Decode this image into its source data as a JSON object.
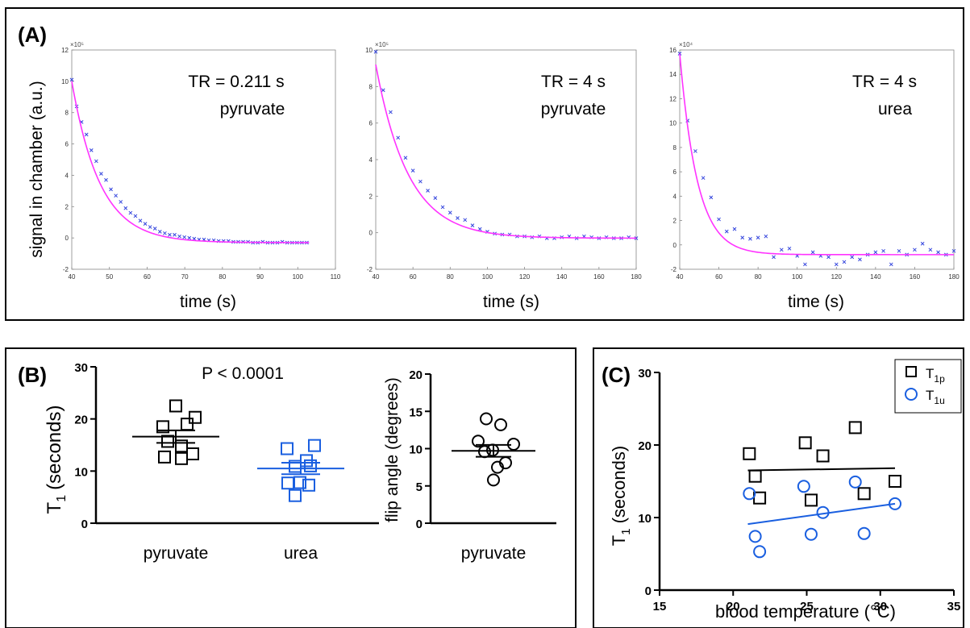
{
  "panel_labels": {
    "a": "(A)",
    "b": "(B)",
    "c": "(C)"
  },
  "colors": {
    "fit": "#ff33ff",
    "marker_a": "#3344dd",
    "pyruvate": "#000000",
    "urea": "#1a5fe0"
  },
  "panel_a": {
    "ylabel": "signal in chamber (a.u.)",
    "xlabel": "time (s)",
    "plots": [
      {
        "annotation": [
          "TR = 0.211 s",
          "pyruvate"
        ],
        "exponent": "×10⁵"
      },
      {
        "annotation": [
          "TR = 4 s",
          "pyruvate"
        ],
        "exponent": "×10⁵"
      },
      {
        "annotation": [
          "TR = 4 s",
          "urea"
        ],
        "exponent": "×10⁴"
      }
    ]
  },
  "panel_b": {
    "ylabel_left": "T",
    "ylabel_left_sub": "1",
    "ylabel_left_unit": "(seconds)",
    "pvalue": "P < 0.0001",
    "ylabel_right": "flip angle (degrees)",
    "cat_pyruvate": "pyruvate",
    "cat_urea": "urea",
    "cat_right": "pyruvate"
  },
  "panel_c": {
    "ylabel": "T",
    "ylabel_sub": "1",
    "ylabel_unit": "(seconds)",
    "xlabel": "blood temperature (°C)",
    "legend": [
      {
        "main": "T",
        "sub": "1p"
      },
      {
        "main": "T",
        "sub": "1u"
      }
    ]
  },
  "chart_data": [
    {
      "type": "scatter",
      "title": "TR = 0.211 s pyruvate",
      "xlabel": "time (s)",
      "ylabel": "signal in chamber (a.u.)",
      "xlim": [
        40,
        110
      ],
      "ylim": [
        -2,
        12
      ],
      "y_scale_factor": "×10⁵",
      "xticks": [
        40,
        50,
        60,
        70,
        80,
        90,
        100,
        110
      ],
      "yticks": [
        -2,
        0,
        2,
        4,
        6,
        8,
        10,
        12
      ],
      "fit": {
        "model": "A*exp(-(t-40)/tau)+c",
        "A": 10.3,
        "tau": 7.5,
        "c": -0.3
      },
      "x": [
        40,
        41.3,
        42.6,
        43.9,
        45.2,
        46.5,
        47.8,
        49.1,
        50.4,
        51.7,
        53,
        54.3,
        55.6,
        56.9,
        58.2,
        59.5,
        60.8,
        62.1,
        63.4,
        64.7,
        66,
        67.3,
        68.6,
        69.9,
        71.2,
        72.5,
        73.8,
        75.1,
        76.4,
        77.7,
        79,
        80.3,
        81.6,
        82.9,
        84.2,
        85.5,
        86.8,
        88.1,
        89.4,
        90.7,
        92,
        93.3,
        94.6,
        95.9,
        97.2,
        98.5,
        99.8,
        101.1,
        102.4
      ],
      "y": [
        10.1,
        8.4,
        7.4,
        6.6,
        5.6,
        4.9,
        4.1,
        3.7,
        3.1,
        2.7,
        2.3,
        1.9,
        1.6,
        1.4,
        1.1,
        0.9,
        0.7,
        0.6,
        0.4,
        0.3,
        0.2,
        0.2,
        0.1,
        0.05,
        0.0,
        -0.05,
        -0.1,
        -0.1,
        -0.15,
        -0.15,
        -0.2,
        -0.2,
        -0.2,
        -0.25,
        -0.25,
        -0.25,
        -0.25,
        -0.3,
        -0.3,
        -0.25,
        -0.3,
        -0.3,
        -0.3,
        -0.25,
        -0.3,
        -0.3,
        -0.3,
        -0.3,
        -0.3
      ]
    },
    {
      "type": "scatter",
      "title": "TR = 4 s pyruvate",
      "xlabel": "time (s)",
      "xlim": [
        40,
        180
      ],
      "ylim": [
        -2,
        10
      ],
      "y_scale_factor": "×10⁵",
      "xticks": [
        40,
        60,
        80,
        100,
        120,
        140,
        160,
        180
      ],
      "yticks": [
        -2,
        0,
        2,
        4,
        6,
        8,
        10
      ],
      "fit": {
        "model": "A*exp(-(t-40)/tau)+c",
        "A": 9.5,
        "tau": 17.5,
        "c": -0.3
      },
      "x": [
        40,
        44,
        48,
        52,
        56,
        60,
        64,
        68,
        72,
        76,
        80,
        84,
        88,
        92,
        96,
        100,
        104,
        108,
        112,
        116,
        120,
        124,
        128,
        132,
        136,
        140,
        144,
        148,
        152,
        156,
        160,
        164,
        168,
        172,
        176,
        180
      ],
      "y": [
        9.9,
        7.8,
        6.6,
        5.2,
        4.1,
        3.4,
        2.8,
        2.3,
        1.9,
        1.4,
        1.1,
        0.8,
        0.7,
        0.4,
        0.2,
        0.05,
        -0.05,
        -0.1,
        -0.1,
        -0.2,
        -0.2,
        -0.25,
        -0.2,
        -0.3,
        -0.3,
        -0.25,
        -0.2,
        -0.3,
        -0.2,
        -0.25,
        -0.3,
        -0.25,
        -0.3,
        -0.3,
        -0.25,
        -0.3
      ]
    },
    {
      "type": "scatter",
      "title": "TR = 4 s urea",
      "xlabel": "time (s)",
      "xlim": [
        40,
        180
      ],
      "ylim": [
        -2,
        16
      ],
      "y_scale_factor": "×10⁴",
      "xticks": [
        40,
        60,
        80,
        100,
        120,
        140,
        160,
        180
      ],
      "yticks": [
        -2,
        0,
        2,
        4,
        6,
        8,
        10,
        12,
        14,
        16
      ],
      "fit": {
        "model": "A*exp(-(t-40)/tau)+c",
        "A": 16.5,
        "tau": 9.0,
        "c": -0.8
      },
      "x": [
        40,
        44,
        48,
        52,
        56,
        60,
        64,
        68,
        72,
        76,
        80,
        84,
        88,
        92,
        96,
        100,
        104,
        108,
        112,
        116,
        120,
        124,
        128,
        132,
        136,
        140,
        144,
        148,
        152,
        156,
        160,
        164,
        168,
        172,
        176,
        180
      ],
      "y": [
        15.7,
        10.2,
        7.7,
        5.5,
        3.9,
        2.1,
        1.1,
        1.3,
        0.6,
        0.5,
        0.6,
        0.7,
        -1.0,
        -0.4,
        -0.3,
        -0.9,
        -1.6,
        -0.6,
        -0.9,
        -1.0,
        -1.6,
        -1.4,
        -1.0,
        -1.2,
        -0.8,
        -0.6,
        -0.5,
        -1.6,
        -0.5,
        -0.8,
        -0.4,
        0.1,
        -0.4,
        -0.6,
        -0.8,
        -0.5
      ]
    },
    {
      "type": "scatter",
      "title": "P < 0.0001",
      "ylabel": "T1 (seconds)",
      "categories": [
        "pyruvate",
        "urea"
      ],
      "ylim": [
        0,
        30
      ],
      "yticks": [
        0,
        10,
        20,
        30
      ],
      "series": [
        {
          "name": "pyruvate",
          "values": [
            22.5,
            20.3,
            19.0,
            18.5,
            15.7,
            14.8,
            13.3,
            12.7,
            12.4
          ],
          "mean": 16.6,
          "sem": 1.2
        },
        {
          "name": "urea",
          "values": [
            14.9,
            14.3,
            12.0,
            11.0,
            10.9,
            7.8,
            7.7,
            7.3,
            5.3
          ],
          "mean": 10.5,
          "sem": 1.1
        }
      ]
    },
    {
      "type": "scatter",
      "ylabel": "flip angle (degrees)",
      "categories": [
        "pyruvate"
      ],
      "ylim": [
        0,
        20
      ],
      "yticks": [
        0,
        5,
        10,
        15,
        20
      ],
      "series": [
        {
          "name": "pyruvate",
          "values": [
            14.0,
            13.2,
            11.0,
            10.6,
            9.8,
            9.6,
            8.1,
            7.5,
            5.8
          ],
          "mean": 9.7,
          "sem": 0.8
        }
      ]
    },
    {
      "type": "scatter",
      "xlabel": "blood temperature (°C)",
      "ylabel": "T1 (seconds)",
      "xlim": [
        15,
        35
      ],
      "ylim": [
        0,
        30
      ],
      "xticks": [
        15,
        20,
        25,
        30,
        35
      ],
      "yticks": [
        0,
        10,
        20,
        30
      ],
      "series": [
        {
          "name": "T1p",
          "x": [
            21.1,
            21.5,
            21.8,
            24.9,
            25.3,
            26.1,
            28.3,
            28.9,
            31.0
          ],
          "y": [
            18.8,
            15.7,
            12.7,
            20.3,
            12.4,
            18.5,
            22.4,
            13.3,
            15.0
          ],
          "fit": [
            [
              21.0,
              16.5
            ],
            [
              31.0,
              16.8
            ]
          ]
        },
        {
          "name": "T1u",
          "x": [
            21.1,
            21.5,
            21.8,
            24.8,
            25.3,
            26.1,
            28.3,
            28.9,
            31.0
          ],
          "y": [
            13.3,
            7.4,
            5.3,
            14.3,
            7.7,
            10.7,
            14.9,
            7.8,
            11.9
          ],
          "fit": [
            [
              21.0,
              9.1
            ],
            [
              31.0,
              11.9
            ]
          ]
        }
      ]
    }
  ]
}
